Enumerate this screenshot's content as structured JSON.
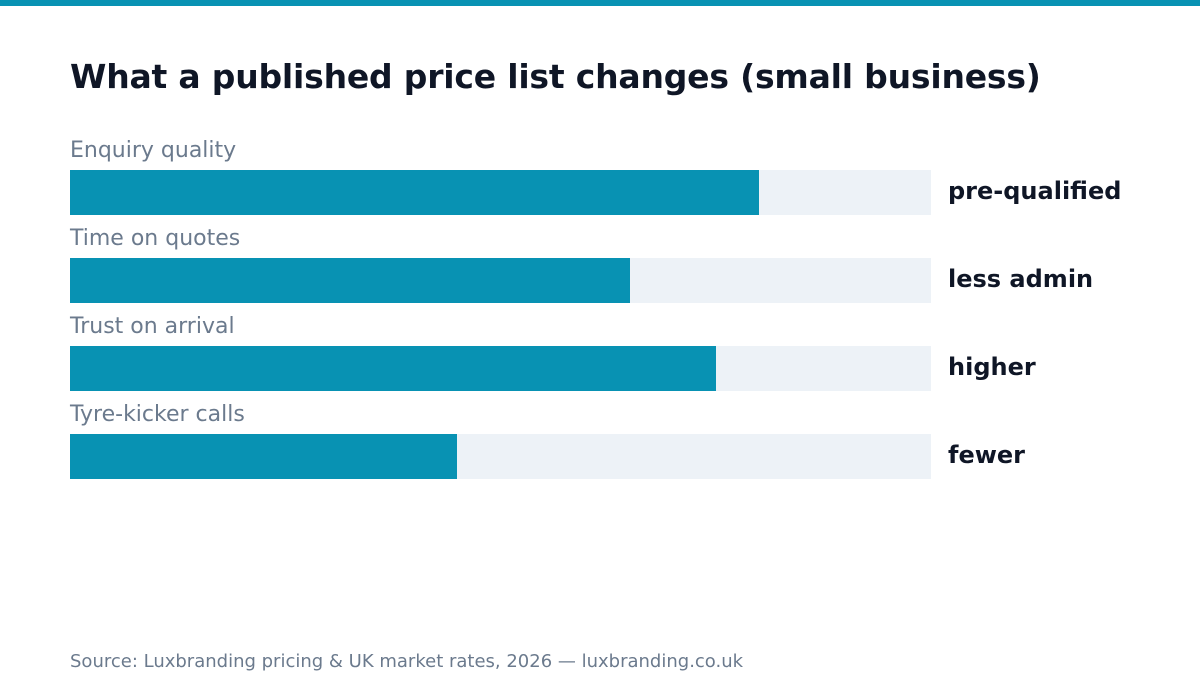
{
  "chart_data": {
    "type": "bar",
    "orientation": "horizontal",
    "title": "What a published price list changes (small business)",
    "categories": [
      "Enquiry quality",
      "Time on quotes",
      "Trust on arrival",
      "Tyre-kicker calls"
    ],
    "values": [
      0.8,
      0.65,
      0.75,
      0.45
    ],
    "value_labels": [
      "pre-qualified",
      "less admin",
      "higher",
      "fewer"
    ],
    "xlim": [
      0,
      1
    ],
    "grid": false,
    "legend": "none",
    "colors": {
      "bar": "#0892b3",
      "track": "#edf2f7",
      "accent": "#0892b3"
    }
  },
  "footer": {
    "source": "Source: Luxbranding pricing & UK market rates, 2026 — luxbranding.co.uk"
  }
}
